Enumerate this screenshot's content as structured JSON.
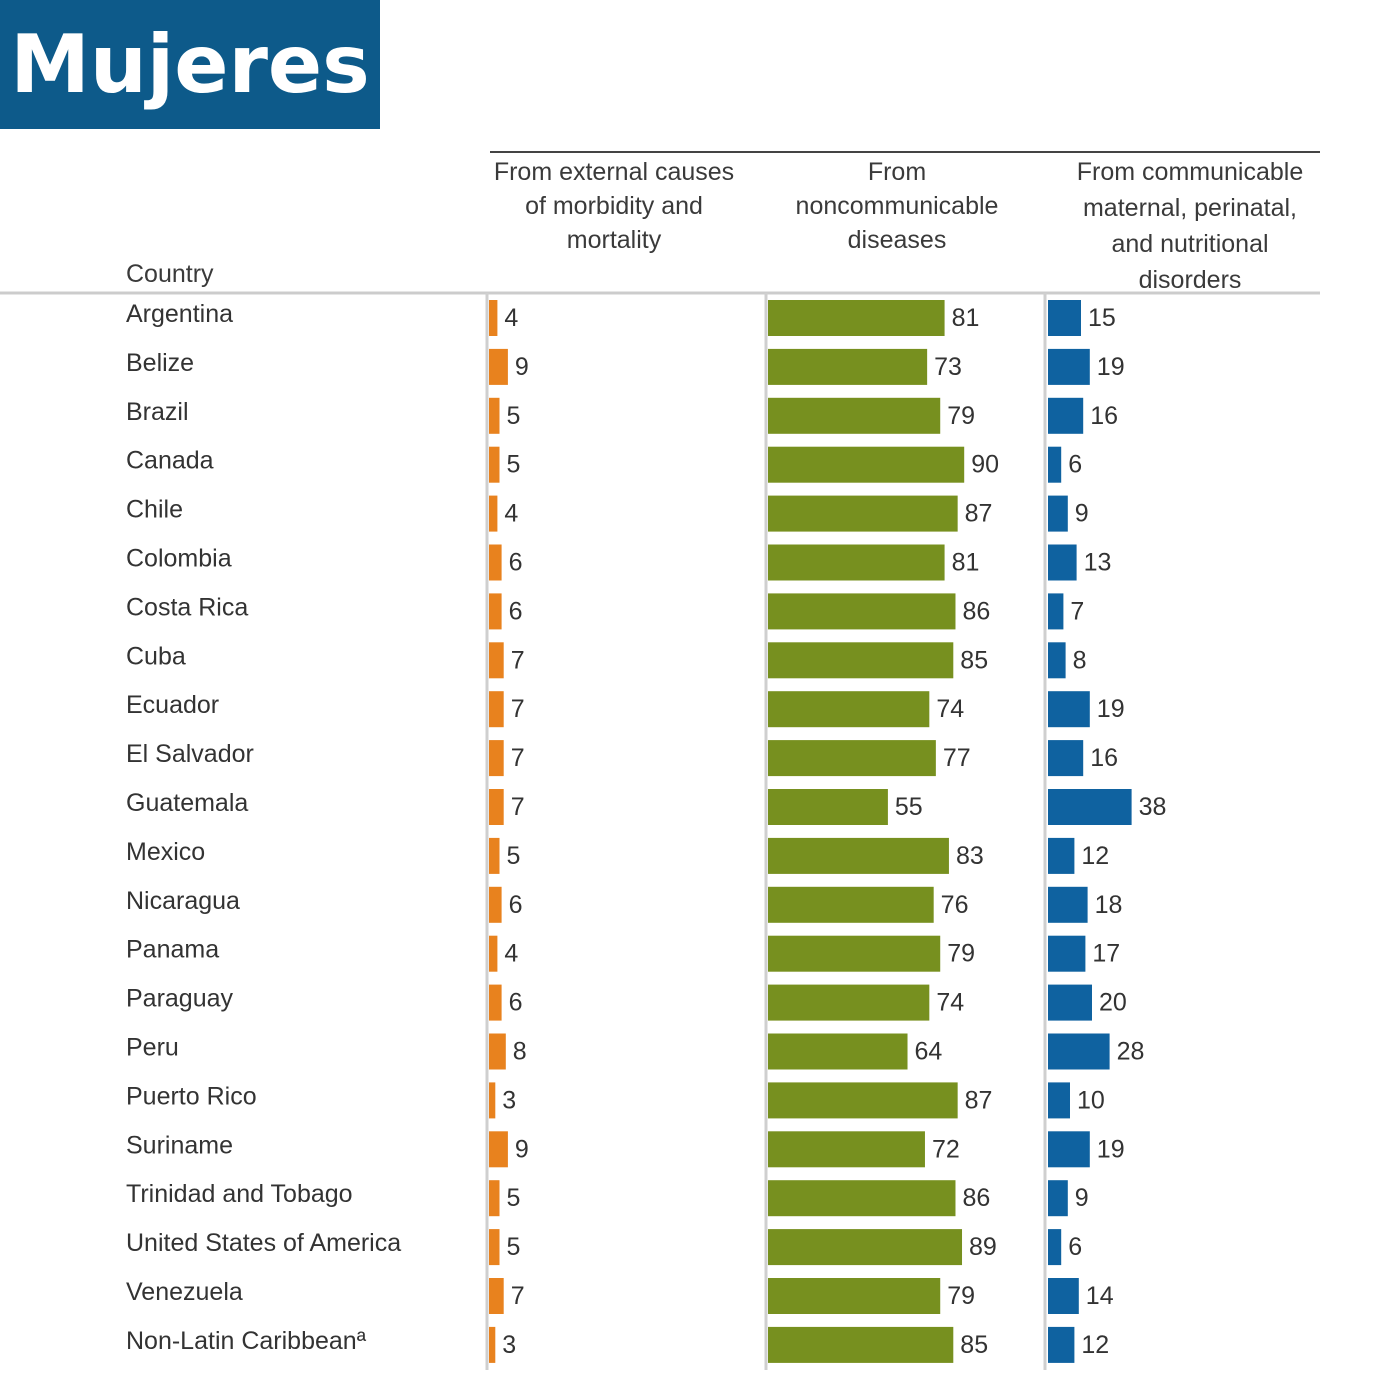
{
  "banner": {
    "title": "Mujeres"
  },
  "colors": {
    "banner": "#0d5a8a",
    "external": "#e8821e",
    "noncommunicable": "#77901f",
    "communicable": "#0f62a0"
  },
  "chart_data": {
    "type": "bar",
    "row_header": "Country",
    "categories": [
      "Argentina",
      "Belize",
      "Brazil",
      "Canada",
      "Chile",
      "Colombia",
      "Costa Rica",
      "Cuba",
      "Ecuador",
      "El Salvador",
      "Guatemala",
      "Mexico",
      "Nicaragua",
      "Panama",
      "Paraguay",
      "Peru",
      "Puerto Rico",
      "Suriname",
      "Trinidad and Tobago",
      "United States of America",
      "Venezuela",
      "Non-Latin Caribbeanª"
    ],
    "series": [
      {
        "name": "From external causes of morbidity and mortality",
        "header_lines": [
          "From external causes",
          "of morbidity and",
          "mortality"
        ],
        "color": "#e8821e",
        "values": [
          4,
          9,
          5,
          5,
          4,
          6,
          6,
          7,
          7,
          7,
          7,
          5,
          6,
          4,
          6,
          8,
          3,
          9,
          5,
          5,
          7,
          3
        ]
      },
      {
        "name": "From noncommunicable diseases",
        "header_lines": [
          "From",
          "noncommunicable",
          "diseases"
        ],
        "color": "#77901f",
        "values": [
          81,
          73,
          79,
          90,
          87,
          81,
          86,
          85,
          74,
          77,
          55,
          83,
          76,
          79,
          74,
          64,
          87,
          72,
          86,
          89,
          79,
          85
        ]
      },
      {
        "name": "From communicable maternal, perinatal, and nutritional disorders",
        "header_lines": [
          "From communicable",
          "maternal, perinatal,",
          "and nutritional",
          "disorders"
        ],
        "color": "#0f62a0",
        "values": [
          15,
          19,
          16,
          6,
          9,
          13,
          7,
          8,
          19,
          16,
          38,
          12,
          18,
          17,
          20,
          28,
          10,
          19,
          9,
          6,
          14,
          12
        ]
      }
    ]
  }
}
